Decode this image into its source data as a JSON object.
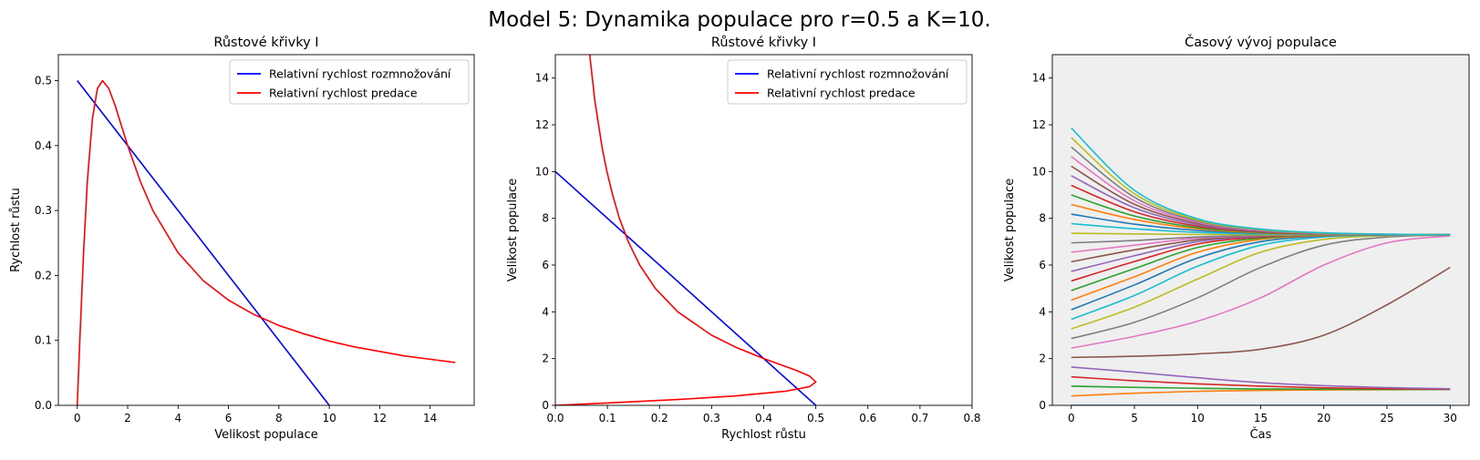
{
  "suptitle": "Model 5: Dynamika populace pro r=0.5 a K=10.",
  "colors": {
    "blue": "#0000ff",
    "red": "#ff0000",
    "panel3_bg": "#efefef",
    "tab10": [
      "#1f77b4",
      "#ff7f0e",
      "#2ca02c",
      "#d62728",
      "#9467bd",
      "#8c564b",
      "#e377c2",
      "#7f7f7f",
      "#bcbd22",
      "#17becf"
    ]
  },
  "chart_data": [
    {
      "type": "line",
      "title": "Růstové křivky I",
      "xlabel": "Velikost populace",
      "ylabel": "Rychlost růstu",
      "xlim": [
        -0.75,
        15.75
      ],
      "ylim": [
        0,
        0.54
      ],
      "xticks": [
        0,
        2,
        4,
        6,
        8,
        10,
        12,
        14
      ],
      "xtick_labels": [
        "0",
        "2",
        "4",
        "6",
        "8",
        "10",
        "12",
        "14"
      ],
      "yticks": [
        0.0,
        0.1,
        0.2,
        0.3,
        0.4,
        0.5
      ],
      "ytick_labels": [
        "0.0",
        "0.1",
        "0.2",
        "0.3",
        "0.4",
        "0.5"
      ],
      "legend_position": "top-right",
      "series": [
        {
          "name": "Relativní rychlost rozmnožování",
          "color": "#0000ff",
          "points": [
            [
              0,
              0.5
            ],
            [
              10,
              0
            ]
          ]
        },
        {
          "name": "Relativní rychlost predace",
          "color": "#ff0000",
          "points": [
            [
              0,
              0
            ],
            [
              0.1,
              0.099
            ],
            [
              0.25,
              0.235
            ],
            [
              0.4,
              0.345
            ],
            [
              0.6,
              0.441
            ],
            [
              0.8,
              0.488
            ],
            [
              1.0,
              0.5
            ],
            [
              1.25,
              0.488
            ],
            [
              1.5,
              0.462
            ],
            [
              2.0,
              0.4
            ],
            [
              2.5,
              0.345
            ],
            [
              3.0,
              0.3
            ],
            [
              4.0,
              0.235
            ],
            [
              5.0,
              0.192
            ],
            [
              6.0,
              0.162
            ],
            [
              7.0,
              0.14
            ],
            [
              7.3,
              0.135
            ],
            [
              8.0,
              0.123
            ],
            [
              9.0,
              0.11
            ],
            [
              10.0,
              0.099
            ],
            [
              11.0,
              0.09
            ],
            [
              12.0,
              0.083
            ],
            [
              13.0,
              0.076
            ],
            [
              14.0,
              0.071
            ],
            [
              15.0,
              0.066
            ]
          ]
        }
      ]
    },
    {
      "type": "line",
      "title": "Růstové křivky I",
      "xlabel": "Rychlost růstu",
      "ylabel": "Velikost populace",
      "xlim": [
        0,
        0.8
      ],
      "ylim": [
        0,
        15
      ],
      "xticks": [
        0.0,
        0.1,
        0.2,
        0.3,
        0.4,
        0.5,
        0.6,
        0.7,
        0.8
      ],
      "xtick_labels": [
        "0.0",
        "0.1",
        "0.2",
        "0.3",
        "0.4",
        "0.5",
        "0.6",
        "0.7",
        "0.8"
      ],
      "yticks": [
        0,
        2,
        4,
        6,
        8,
        10,
        12,
        14
      ],
      "ytick_labels": [
        "0",
        "2",
        "4",
        "6",
        "8",
        "10",
        "12",
        "14"
      ],
      "legend_position": "top-right",
      "series": [
        {
          "name": "Relativní rychlost rozmnožování",
          "color": "#0000ff",
          "points": [
            [
              0.5,
              0
            ],
            [
              0,
              10
            ]
          ]
        },
        {
          "name": "Relativní rychlost predace",
          "color": "#ff0000",
          "points": [
            [
              0,
              0
            ],
            [
              0.099,
              0.1
            ],
            [
              0.235,
              0.25
            ],
            [
              0.345,
              0.4
            ],
            [
              0.441,
              0.6
            ],
            [
              0.488,
              0.8
            ],
            [
              0.5,
              1.0
            ],
            [
              0.488,
              1.25
            ],
            [
              0.462,
              1.5
            ],
            [
              0.4,
              2.0
            ],
            [
              0.345,
              2.5
            ],
            [
              0.3,
              3.0
            ],
            [
              0.235,
              4.0
            ],
            [
              0.192,
              5.0
            ],
            [
              0.162,
              6.0
            ],
            [
              0.14,
              7.0
            ],
            [
              0.135,
              7.3
            ],
            [
              0.123,
              8.0
            ],
            [
              0.11,
              9.0
            ],
            [
              0.099,
              10.0
            ],
            [
              0.09,
              11.0
            ],
            [
              0.083,
              12.0
            ],
            [
              0.076,
              13.0
            ],
            [
              0.071,
              14.0
            ],
            [
              0.066,
              15.0
            ]
          ]
        }
      ]
    },
    {
      "type": "line",
      "title": "Časový vývoj populace",
      "xlabel": "Čas",
      "ylabel": "Velikost populace",
      "xlim": [
        -1.5,
        31.5
      ],
      "ylim": [
        0,
        15
      ],
      "xticks": [
        0,
        5,
        10,
        15,
        20,
        25,
        30
      ],
      "xtick_labels": [
        "0",
        "5",
        "10",
        "15",
        "20",
        "25",
        "30"
      ],
      "yticks": [
        0,
        2,
        4,
        6,
        8,
        10,
        12,
        14
      ],
      "ytick_labels": [
        "0",
        "2",
        "4",
        "6",
        "8",
        "10",
        "12",
        "14"
      ],
      "grid": false,
      "background": "#efefef",
      "trajectories": [
        {
          "y": [
            0.0,
            0.0,
            0.0,
            0.0,
            0.0,
            0.0,
            0.0
          ]
        },
        {
          "y": [
            0.4,
            0.52,
            0.6,
            0.64,
            0.66,
            0.67,
            0.68
          ]
        },
        {
          "y": [
            0.82,
            0.77,
            0.73,
            0.7,
            0.69,
            0.68,
            0.68
          ]
        },
        {
          "y": [
            1.22,
            1.05,
            0.92,
            0.82,
            0.75,
            0.71,
            0.69
          ]
        },
        {
          "y": [
            1.64,
            1.42,
            1.18,
            0.97,
            0.84,
            0.76,
            0.71
          ]
        },
        {
          "y": [
            2.05,
            2.1,
            2.2,
            2.4,
            3.0,
            4.3,
            5.9
          ]
        },
        {
          "y": [
            2.45,
            2.95,
            3.6,
            4.6,
            6.0,
            6.95,
            7.25
          ]
        },
        {
          "y": [
            2.86,
            3.55,
            4.6,
            5.9,
            6.85,
            7.2,
            7.28
          ]
        },
        {
          "y": [
            3.27,
            4.2,
            5.4,
            6.55,
            7.1,
            7.26,
            7.3
          ]
        },
        {
          "y": [
            3.68,
            4.7,
            5.95,
            6.85,
            7.2,
            7.28,
            7.3
          ]
        },
        {
          "y": [
            4.09,
            5.15,
            6.3,
            7.0,
            7.24,
            7.29,
            7.3
          ]
        },
        {
          "y": [
            4.5,
            5.5,
            6.55,
            7.1,
            7.26,
            7.3,
            7.3
          ]
        },
        {
          "y": [
            4.91,
            5.85,
            6.75,
            7.15,
            7.28,
            7.3,
            7.3
          ]
        },
        {
          "y": [
            5.32,
            6.15,
            6.9,
            7.2,
            7.28,
            7.3,
            7.3
          ]
        },
        {
          "y": [
            5.73,
            6.4,
            7.0,
            7.23,
            7.29,
            7.3,
            7.3
          ]
        },
        {
          "y": [
            6.14,
            6.65,
            7.08,
            7.25,
            7.29,
            7.3,
            7.3
          ]
        },
        {
          "y": [
            6.55,
            6.85,
            7.15,
            7.27,
            7.3,
            7.3,
            7.3
          ]
        },
        {
          "y": [
            6.95,
            7.05,
            7.2,
            7.28,
            7.3,
            7.3,
            7.3
          ]
        },
        {
          "y": [
            7.36,
            7.33,
            7.31,
            7.3,
            7.3,
            7.3,
            7.3
          ]
        },
        {
          "y": [
            7.77,
            7.55,
            7.4,
            7.33,
            7.31,
            7.3,
            7.3
          ]
        },
        {
          "y": [
            8.18,
            7.75,
            7.48,
            7.36,
            7.32,
            7.3,
            7.3
          ]
        },
        {
          "y": [
            8.59,
            7.95,
            7.55,
            7.38,
            7.32,
            7.3,
            7.3
          ]
        },
        {
          "y": [
            9.0,
            8.1,
            7.6,
            7.4,
            7.33,
            7.31,
            7.3
          ]
        },
        {
          "y": [
            9.41,
            8.28,
            7.66,
            7.42,
            7.34,
            7.31,
            7.3
          ]
        },
        {
          "y": [
            9.82,
            8.45,
            7.72,
            7.44,
            7.34,
            7.31,
            7.3
          ]
        },
        {
          "y": [
            10.23,
            8.6,
            7.78,
            7.46,
            7.35,
            7.31,
            7.3
          ]
        },
        {
          "y": [
            10.64,
            8.75,
            7.83,
            7.48,
            7.35,
            7.31,
            7.3
          ]
        },
        {
          "y": [
            11.05,
            8.9,
            7.88,
            7.5,
            7.36,
            7.32,
            7.3
          ]
        },
        {
          "y": [
            11.45,
            9.05,
            7.93,
            7.52,
            7.37,
            7.32,
            7.3
          ]
        },
        {
          "y": [
            11.86,
            9.2,
            7.98,
            7.54,
            7.38,
            7.32,
            7.3
          ]
        }
      ],
      "times": [
        0,
        5,
        10,
        15,
        20,
        25,
        30
      ]
    }
  ]
}
